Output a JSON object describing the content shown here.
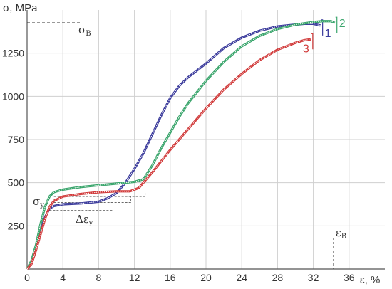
{
  "chart_data": {
    "type": "line",
    "ylabel": "σ, MPa",
    "xlabel": "ε, %",
    "xlim": [
      0,
      40
    ],
    "ylim": [
      0,
      1500
    ],
    "x_ticks": [
      0,
      4,
      8,
      12,
      16,
      20,
      24,
      28,
      32,
      36
    ],
    "y_ticks": [
      250,
      500,
      750,
      1000,
      1250
    ],
    "grid": true,
    "colors": {
      "1": "#3c3c9c",
      "2": "#3aa56c",
      "3": "#d13b3b"
    },
    "series": [
      {
        "name": "1",
        "x": [
          0,
          0.5,
          1,
          1.5,
          2,
          2.5,
          3,
          4,
          6,
          8,
          9,
          10,
          11,
          12,
          13,
          14,
          15,
          16,
          17,
          18,
          20,
          22,
          24,
          26,
          28,
          30,
          31,
          32,
          32.8
        ],
        "y": [
          0,
          40,
          120,
          220,
          300,
          350,
          365,
          375,
          380,
          390,
          410,
          440,
          500,
          580,
          670,
          780,
          890,
          990,
          1060,
          1110,
          1190,
          1280,
          1340,
          1380,
          1405,
          1415,
          1420,
          1420,
          1410
        ]
      },
      {
        "name": "2",
        "x": [
          0,
          0.5,
          1,
          1.5,
          2,
          2.5,
          3,
          4,
          6,
          8,
          10,
          12,
          13,
          14,
          15,
          16,
          17,
          18,
          20,
          22,
          24,
          26,
          28,
          30,
          32,
          33,
          34,
          34.4
        ],
        "y": [
          0,
          50,
          140,
          260,
          360,
          420,
          445,
          460,
          475,
          485,
          495,
          505,
          520,
          600,
          700,
          790,
          880,
          960,
          1090,
          1200,
          1290,
          1350,
          1390,
          1415,
          1430,
          1435,
          1435,
          1425
        ]
      },
      {
        "name": "3",
        "x": [
          0,
          0.5,
          1,
          1.5,
          2,
          2.5,
          3,
          4,
          6,
          8,
          10,
          11.5,
          12.5,
          14,
          16,
          18,
          20,
          22,
          24,
          26,
          28,
          30,
          31,
          31.7
        ],
        "y": [
          0,
          30,
          110,
          200,
          290,
          360,
          395,
          420,
          435,
          445,
          450,
          450,
          470,
          560,
          690,
          810,
          930,
          1040,
          1130,
          1210,
          1270,
          1310,
          1325,
          1330
        ]
      }
    ],
    "annotations": {
      "sigma_b": {
        "base": "σ",
        "sub": "B"
      },
      "sigma_y": {
        "base": "σ",
        "sub": "y"
      },
      "delta_eps_y": {
        "base": "Δε",
        "sub": "y"
      },
      "eps_b": {
        "base": "ε",
        "sub": "B"
      }
    }
  }
}
